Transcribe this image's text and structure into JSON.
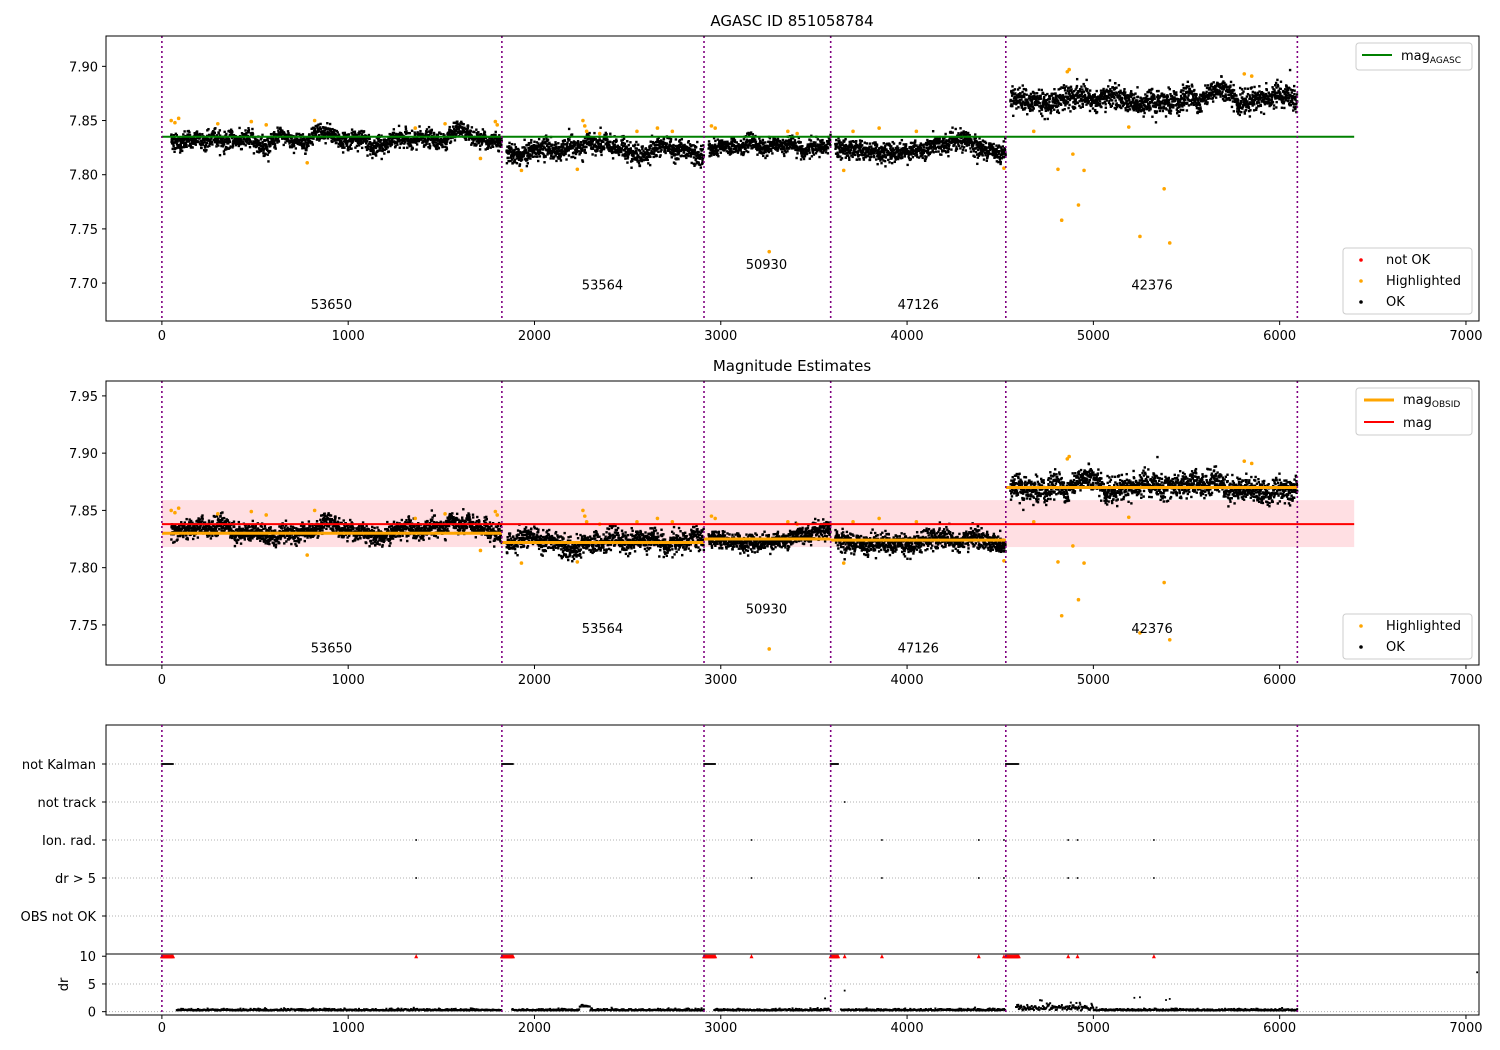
{
  "chart_data": [
    {
      "type": "scatter",
      "title": "AGASC ID 851058784",
      "xlim": [
        -300,
        7070
      ],
      "ylim": [
        7.665,
        7.928
      ],
      "xticks": [
        0,
        1000,
        2000,
        3000,
        4000,
        5000,
        6000,
        7000
      ],
      "yticks": [
        7.7,
        7.75,
        7.8,
        7.85,
        7.9
      ],
      "ytick_labels": [
        "7.70",
        "7.75",
        "7.80",
        "7.85",
        "7.90"
      ],
      "obsid_boundaries": [
        0,
        1825,
        2910,
        3590,
        4530,
        6095
      ],
      "obsid_labels": [
        {
          "text": "53650",
          "x": 910,
          "y": 7.676
        },
        {
          "text": "53564",
          "x": 2365,
          "y": 7.694
        },
        {
          "text": "50930",
          "x": 3245,
          "y": 7.713
        },
        {
          "text": "47126",
          "x": 4060,
          "y": 7.676
        },
        {
          "text": "42376",
          "x": 5315,
          "y": 7.694
        }
      ],
      "reference_lines": [
        {
          "name": "AGASC",
          "value": 7.835,
          "x": [
            0,
            6400
          ],
          "color": "#008000"
        }
      ],
      "segments": [
        {
          "x": [
            50,
            1825
          ],
          "mean": 7.832,
          "spread": 0.006
        },
        {
          "x": [
            1850,
            2910
          ],
          "mean": 7.822,
          "spread": 0.007
        },
        {
          "x": [
            2935,
            3590
          ],
          "mean": 7.825,
          "spread": 0.0055
        },
        {
          "x": [
            3615,
            4530
          ],
          "mean": 7.824,
          "spread": 0.0065
        },
        {
          "x": [
            4555,
            6095
          ],
          "mean": 7.87,
          "spread": 0.008
        }
      ],
      "highlighted": {
        "x": [
          50,
          70,
          90,
          300,
          480,
          560,
          780,
          820,
          1360,
          1520,
          1710,
          1790,
          1800,
          1930,
          2230,
          2260,
          2270,
          2280,
          2350,
          2550,
          2660,
          2740,
          2950,
          2970,
          3260,
          3360,
          3410,
          3660,
          3710,
          3850,
          4050,
          4520,
          4680,
          4810,
          4830,
          4860,
          4870,
          4890,
          4920,
          4950,
          5190,
          5250,
          5380,
          5410,
          5810,
          5850
        ],
        "y": [
          7.85,
          7.848,
          7.852,
          7.847,
          7.849,
          7.846,
          7.811,
          7.85,
          7.843,
          7.847,
          7.815,
          7.849,
          7.846,
          7.804,
          7.805,
          7.85,
          7.845,
          7.84,
          7.838,
          7.84,
          7.843,
          7.84,
          7.845,
          7.843,
          7.729,
          7.84,
          7.838,
          7.804,
          7.84,
          7.843,
          7.84,
          7.806,
          7.84,
          7.805,
          7.758,
          7.895,
          7.897,
          7.819,
          7.772,
          7.804,
          7.844,
          7.743,
          7.787,
          7.737,
          7.893,
          7.891
        ]
      },
      "legend": {
        "position": "lower-right",
        "entries": [
          "not OK",
          "Highlighted",
          "OK"
        ],
        "colors": [
          "#ff0000",
          "#ffa500",
          "#000000"
        ]
      },
      "legend_top": {
        "position": "upper-right",
        "entries": [
          "AGASC"
        ]
      },
      "grid": false
    },
    {
      "type": "scatter",
      "title": "Magnitude Estimates",
      "xlim": [
        -300,
        7070
      ],
      "ylim": [
        7.715,
        7.963
      ],
      "xticks": [
        0,
        1000,
        2000,
        3000,
        4000,
        5000,
        6000,
        7000
      ],
      "yticks": [
        7.75,
        7.8,
        7.85,
        7.9,
        7.95
      ],
      "ytick_labels": [
        "7.75",
        "7.80",
        "7.85",
        "7.90",
        "7.95"
      ],
      "obsid_boundaries": [
        0,
        1825,
        2910,
        3590,
        4530,
        6095
      ],
      "obsid_labels": [
        {
          "text": "53650",
          "x": 910,
          "y": 7.726
        },
        {
          "text": "53564",
          "x": 2365,
          "y": 7.743
        },
        {
          "text": "50930",
          "x": 3245,
          "y": 7.76
        },
        {
          "text": "47126",
          "x": 4060,
          "y": 7.726
        },
        {
          "text": "42376",
          "x": 5315,
          "y": 7.743
        }
      ],
      "mag": {
        "value": 7.838,
        "band": [
          7.818,
          7.859
        ],
        "x": [
          0,
          6400
        ],
        "color": "#ff0000"
      },
      "obsid_means": [
        {
          "x": [
            0,
            1825
          ],
          "value": 7.83
        },
        {
          "x": [
            1825,
            2910
          ],
          "value": 7.822
        },
        {
          "x": [
            2910,
            3590
          ],
          "value": 7.825
        },
        {
          "x": [
            3590,
            4530
          ],
          "value": 7.824
        },
        {
          "x": [
            4530,
            6095
          ],
          "value": 7.87
        }
      ],
      "highlighted": {
        "x": [
          50,
          70,
          90,
          300,
          480,
          560,
          780,
          820,
          1360,
          1520,
          1710,
          1790,
          1800,
          1930,
          2230,
          2260,
          2270,
          2280,
          2350,
          2550,
          2660,
          2740,
          2950,
          2970,
          3260,
          3360,
          3410,
          3660,
          3710,
          3850,
          4050,
          4520,
          4680,
          4810,
          4830,
          4860,
          4870,
          4890,
          4920,
          4950,
          5190,
          5250,
          5380,
          5410,
          5810,
          5850
        ],
        "y": [
          7.85,
          7.848,
          7.852,
          7.847,
          7.849,
          7.846,
          7.811,
          7.85,
          7.843,
          7.847,
          7.815,
          7.849,
          7.846,
          7.804,
          7.805,
          7.85,
          7.845,
          7.84,
          7.838,
          7.84,
          7.843,
          7.84,
          7.845,
          7.843,
          7.729,
          7.84,
          7.838,
          7.804,
          7.84,
          7.843,
          7.84,
          7.806,
          7.84,
          7.805,
          7.758,
          7.895,
          7.897,
          7.819,
          7.772,
          7.804,
          7.844,
          7.743,
          7.787,
          7.737,
          7.893,
          7.891
        ]
      },
      "legend": {
        "position": "lower-right",
        "entries": [
          "Highlighted",
          "OK"
        ],
        "colors": [
          "#ffa500",
          "#000000"
        ]
      },
      "legend_top": {
        "position": "upper-right",
        "entries": [
          "OBSID",
          "mag"
        ],
        "colors": [
          "#ffa500",
          "#ff0000"
        ]
      },
      "grid": false
    },
    {
      "type": "scatter",
      "title": "",
      "xlim": [
        -300,
        7070
      ],
      "flag_rows": [
        "not Kalman",
        "not track",
        "Ion. rad.",
        "dr > 5",
        "OBS not OK"
      ],
      "flags": {
        "not Kalman": [
          [
            0,
            60
          ],
          [
            1825,
            1885
          ],
          [
            2910,
            2970
          ],
          [
            3590,
            3630
          ],
          [
            4530,
            4600
          ]
        ],
        "not track": [
          3665
        ],
        "Ion. rad.": [
          1365,
          3165,
          3865,
          4385,
          4520,
          4865,
          4915,
          5325
        ],
        "dr > 5": [
          1365,
          3165,
          3865,
          4385,
          4520,
          4865,
          4915,
          5325
        ],
        "OBS not OK": []
      },
      "dr_ylabel": "dr",
      "dr_yticks": [
        0,
        5,
        10
      ],
      "dr_ylim": [
        -0.6,
        10.4
      ],
      "dr_red": [
        1365,
        3165,
        3665,
        3865,
        4385,
        4520,
        4865,
        4915,
        5325
      ],
      "dr_red_runs": [
        [
          0,
          60
        ],
        [
          1825,
          1885
        ],
        [
          2910,
          2970
        ],
        [
          3590,
          3630
        ],
        [
          4530,
          4600
        ]
      ],
      "dr_outliers": {
        "x": [
          3560,
          3665,
          5220,
          5250,
          5390,
          5410,
          7060
        ],
        "y": [
          2.4,
          3.8,
          2.5,
          2.6,
          2.1,
          2.3,
          7.1
        ]
      },
      "xticks": [
        0,
        1000,
        2000,
        3000,
        4000,
        5000,
        6000,
        7000
      ],
      "grid": "horizontal-dotted"
    }
  ]
}
